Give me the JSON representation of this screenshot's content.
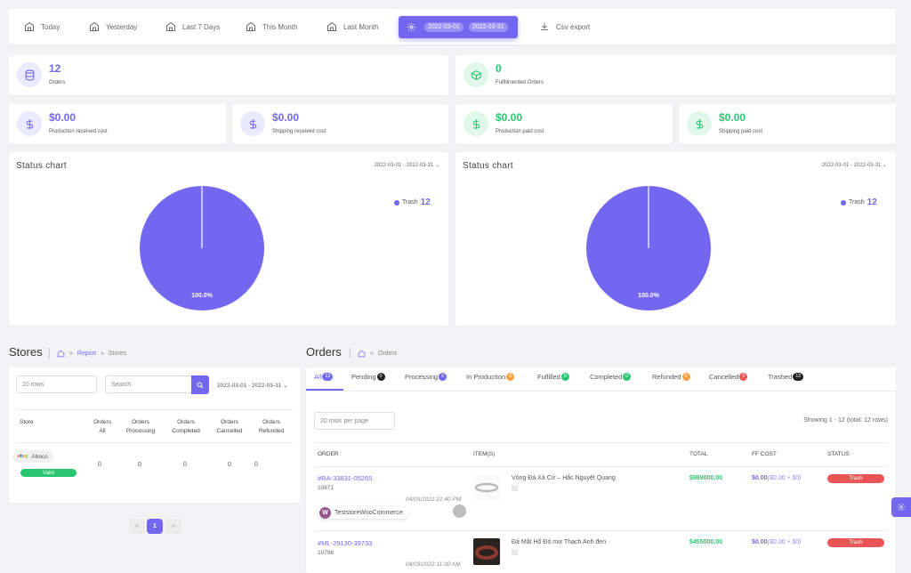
{
  "filters": {
    "today": "Today",
    "yesterday": "Yesterday",
    "last7": "Last 7 Days",
    "this_month": "This Month",
    "last_month": "Last Month",
    "date_from": "2022-03-01",
    "date_to": "2022-03-31",
    "csv_export": "Csv export"
  },
  "stats": {
    "orders": {
      "value": "12",
      "label": "Orders"
    },
    "fulfillmented": {
      "value": "0",
      "label": "Fulfillmented Orders"
    },
    "production_received": {
      "value": "$0.00",
      "label": "Production received cost"
    },
    "shipping_received": {
      "value": "$0.00",
      "label": "Shipping received cost"
    },
    "production_paid": {
      "value": "$0.00",
      "label": "Production paid cost"
    },
    "shipping_paid": {
      "value": "$0.00",
      "label": "Shipping paid cost"
    }
  },
  "charts": {
    "left": {
      "title": "Status chart",
      "range": "2022-03-01 - 2022-03-31",
      "legend_label": "Trash",
      "legend_count": "12",
      "slice_label": "100.0%"
    },
    "right": {
      "title": "Status chart",
      "range": "2022-03-01 - 2022-03-31",
      "legend_label": "Trash",
      "legend_count": "12",
      "slice_label": "100.0%"
    }
  },
  "chart_data": [
    {
      "type": "pie",
      "title": "Status chart",
      "categories": [
        "Trash"
      ],
      "values": [
        12
      ],
      "percent_labels": [
        "100.0%"
      ],
      "legend": "right"
    },
    {
      "type": "pie",
      "title": "Status chart",
      "categories": [
        "Trash"
      ],
      "values": [
        12
      ],
      "percent_labels": [
        "100.0%"
      ],
      "legend": "right"
    }
  ],
  "stores": {
    "title": "Stores",
    "breadcrumb": {
      "report": "Report",
      "current": "Stores",
      "sep": "»"
    },
    "rows_select": "10 rows",
    "search_placeholder": "Search",
    "range": "2022-03-01 - 2022-03-31",
    "columns": [
      {
        "l1": "Store",
        "l2": ""
      },
      {
        "l1": "Orders",
        "l2": "All"
      },
      {
        "l1": "Orders",
        "l2": "Processing"
      },
      {
        "l1": "Orders",
        "l2": "Completed"
      },
      {
        "l1": "Orders",
        "l2": "Cancelled"
      },
      {
        "l1": "Orders",
        "l2": "Refunded"
      }
    ],
    "rows": [
      {
        "store": "Aboco",
        "status": "Valid",
        "all": "0",
        "processing": "0",
        "completed": "0",
        "cancelled": "0",
        "refunded": "0"
      }
    ],
    "pager": {
      "prev": "«",
      "page": "1",
      "next": "»"
    }
  },
  "orders": {
    "title": "Orders",
    "breadcrumb": {
      "current": "Orders",
      "sep": "»"
    },
    "tabs": [
      {
        "label": "All",
        "count": "12"
      },
      {
        "label": "Pending",
        "count": "0"
      },
      {
        "label": "Processing",
        "count": "0"
      },
      {
        "label": "In Production",
        "count": "0"
      },
      {
        "label": "Fulfilled",
        "count": "0"
      },
      {
        "label": "Completed",
        "count": "0"
      },
      {
        "label": "Refunded",
        "count": "0"
      },
      {
        "label": "Cancelled",
        "count": "0"
      },
      {
        "label": "Trashed",
        "count": "12"
      }
    ],
    "per_page": "20 rows per page",
    "showing": "Showing 1 - 12 (total: 12 rows)",
    "columns": {
      "order": "ORDER",
      "items": "ITEM(S)",
      "total": "TOTAL",
      "ff_cost": "FF COST",
      "status": "STATUS"
    },
    "rows": [
      {
        "id": "#RA-33831-05265",
        "number": "10871",
        "date": "04/03/2022 21:40 PM",
        "store": "TeststoreWooCommerce",
        "item": "Vòng Đá Xà Cừ – Hắc Nguyệt Quang",
        "total": "$989000.00",
        "ff_cost": "$0.00",
        "ff_detail": "($0.00 + $0)",
        "status": "Trash"
      },
      {
        "id": "#ML-29130-39733",
        "number": "10796",
        "date": "04/03/2022 11:30 AM",
        "store": "",
        "item": "Đá Mắt Hổ Đỏ mix Thạch Anh đen",
        "total": "$455000.00",
        "ff_cost": "$0.00",
        "ff_detail": "($0.00 + $0)",
        "status": "Trash"
      }
    ]
  },
  "icons": {
    "home": "home-icon",
    "gear": "gear-icon",
    "download": "download-icon",
    "database": "database-icon",
    "box": "box-icon",
    "dollar": "dollar-icon",
    "search": "search-icon"
  },
  "colors": {
    "accent": "#7367f0",
    "success": "#28c76f",
    "danger": "#ea5455",
    "warning": "#ff9f43"
  }
}
